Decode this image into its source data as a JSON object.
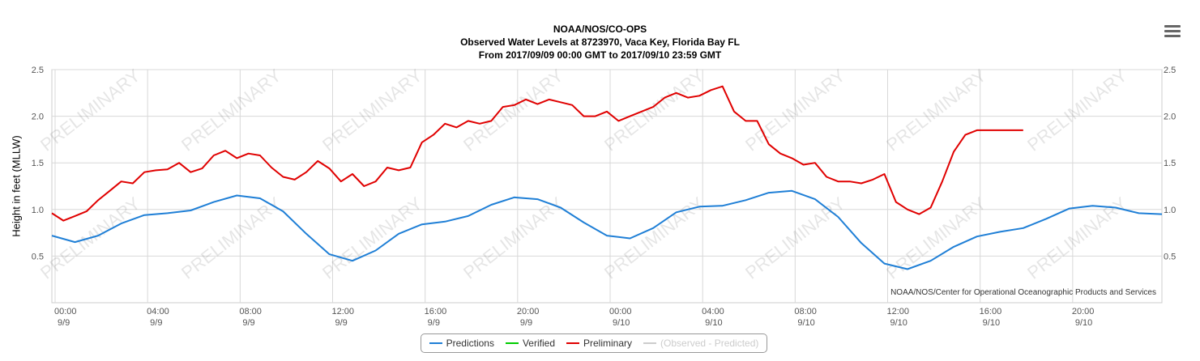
{
  "header": {
    "line1": "NOAA/NOS/CO-OPS",
    "line2": "Observed Water Levels at 8723970, Vaca Key, Florida Bay FL",
    "line3": "From 2017/09/09 00:00 GMT to 2017/09/10 23:59 GMT"
  },
  "menu": {
    "icon": "hamburger-menu-icon"
  },
  "credit": "NOAA/NOS/Center for Operational Oceanographic Products and Services",
  "watermark": "PRELIMINARY",
  "legend": {
    "items": [
      {
        "label": "Predictions",
        "color": "#1f7fd6",
        "enabled": true
      },
      {
        "label": "Verified",
        "color": "#00cc00",
        "enabled": true
      },
      {
        "label": "Preliminary",
        "color": "#e00000",
        "enabled": true
      },
      {
        "label": "(Observed - Predicted)",
        "color": "#cccccc",
        "enabled": false
      }
    ]
  },
  "chart_data": {
    "type": "line",
    "title": "NOAA/NOS/CO-OPS",
    "subtitle": "Observed Water Levels at 8723970, Vaca Key, Florida Bay FL",
    "ylabel": "Height in feet (MLLW)",
    "xlabel": "",
    "xlim": [
      "2017-09-09 00:00",
      "2017-09-10 23:59"
    ],
    "ylim": [
      0.0,
      2.5
    ],
    "yticks": [
      "0.5",
      "1.0",
      "1.5",
      "2.0",
      "2.5"
    ],
    "xticks": [
      {
        "time": "00:00",
        "date": "9/9"
      },
      {
        "time": "04:00",
        "date": "9/9"
      },
      {
        "time": "08:00",
        "date": "9/9"
      },
      {
        "time": "12:00",
        "date": "9/9"
      },
      {
        "time": "16:00",
        "date": "9/9"
      },
      {
        "time": "20:00",
        "date": "9/9"
      },
      {
        "time": "00:00",
        "date": "9/10"
      },
      {
        "time": "04:00",
        "date": "9/10"
      },
      {
        "time": "08:00",
        "date": "9/10"
      },
      {
        "time": "12:00",
        "date": "9/10"
      },
      {
        "time": "16:00",
        "date": "9/10"
      },
      {
        "time": "20:00",
        "date": "9/10"
      }
    ],
    "grid": true,
    "legend_position": "bottom",
    "series": [
      {
        "name": "Predictions",
        "color": "#1f7fd6",
        "x_hours": [
          0,
          1,
          2,
          3,
          4,
          5,
          6,
          7,
          8,
          9,
          10,
          11,
          12,
          13,
          14,
          15,
          16,
          17,
          18,
          19,
          20,
          21,
          22,
          23,
          24,
          25,
          26,
          27,
          28,
          29,
          30,
          31,
          32,
          33,
          34,
          35,
          36,
          37,
          38,
          39,
          40,
          41,
          42,
          43,
          44,
          45,
          46,
          47,
          48
        ],
        "values": [
          0.72,
          0.65,
          0.72,
          0.85,
          0.94,
          0.96,
          0.99,
          1.08,
          1.15,
          1.12,
          0.98,
          0.74,
          0.52,
          0.45,
          0.56,
          0.74,
          0.84,
          0.87,
          0.93,
          1.05,
          1.13,
          1.11,
          1.02,
          0.86,
          0.72,
          0.69,
          0.8,
          0.97,
          1.03,
          1.04,
          1.1,
          1.18,
          1.2,
          1.11,
          0.92,
          0.64,
          0.42,
          0.36,
          0.45,
          0.6,
          0.71,
          0.76,
          0.8,
          0.9,
          1.01,
          1.04,
          1.02,
          0.96,
          0.95
        ]
      },
      {
        "name": "Verified",
        "color": "#00cc00",
        "x_hours": [],
        "values": []
      },
      {
        "name": "Preliminary",
        "color": "#e00000",
        "x_hours": [
          0,
          0.5,
          1,
          1.5,
          2,
          2.5,
          3,
          3.5,
          4,
          4.5,
          5,
          5.5,
          6,
          6.5,
          7,
          7.5,
          8,
          8.5,
          9,
          9.5,
          10,
          10.5,
          11,
          11.5,
          12,
          12.5,
          13,
          13.5,
          14,
          14.5,
          15,
          15.5,
          16,
          16.5,
          17,
          17.5,
          18,
          18.5,
          19,
          19.5,
          20,
          20.5,
          21,
          21.5,
          22,
          22.5,
          23,
          23.5,
          24,
          24.5,
          25,
          25.5,
          26,
          26.5,
          27,
          27.5,
          28,
          28.5,
          29,
          29.5,
          30,
          30.5,
          31,
          31.5,
          32,
          32.5,
          33,
          33.5,
          34,
          34.5,
          35,
          35.5,
          36,
          36.5,
          37,
          37.5,
          38,
          38.5,
          39,
          39.5,
          40,
          40.5,
          41,
          41.5,
          42
        ],
        "values": [
          0.96,
          0.88,
          0.93,
          0.98,
          1.1,
          1.2,
          1.3,
          1.28,
          1.4,
          1.42,
          1.43,
          1.5,
          1.4,
          1.44,
          1.58,
          1.63,
          1.55,
          1.6,
          1.58,
          1.45,
          1.35,
          1.32,
          1.4,
          1.52,
          1.44,
          1.3,
          1.38,
          1.25,
          1.3,
          1.45,
          1.42,
          1.45,
          1.72,
          1.8,
          1.92,
          1.88,
          1.95,
          1.92,
          1.95,
          2.1,
          2.12,
          2.18,
          2.13,
          2.18,
          2.15,
          2.12,
          2.0,
          2.0,
          2.05,
          1.95,
          2.0,
          2.05,
          2.1,
          2.2,
          2.25,
          2.2,
          2.22,
          2.28,
          2.32,
          2.05,
          1.95,
          1.95,
          1.7,
          1.6,
          1.55,
          1.48,
          1.5,
          1.35,
          1.3,
          1.3,
          1.28,
          1.32,
          1.38,
          1.08,
          1.0,
          0.95,
          1.02,
          1.3,
          1.62,
          1.8,
          1.85,
          1.85,
          1.85,
          1.85,
          1.85
        ]
      },
      {
        "name": "(Observed - Predicted)",
        "color": "#cccccc",
        "x_hours": [],
        "values": []
      }
    ]
  }
}
